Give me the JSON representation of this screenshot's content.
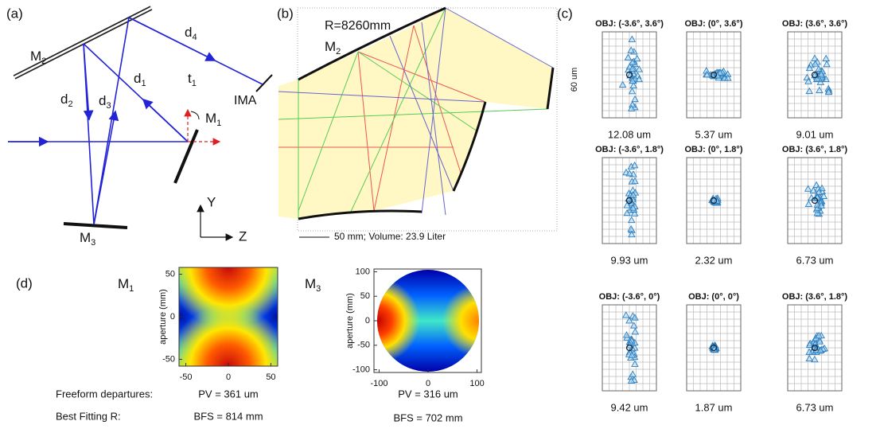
{
  "panel_a": {
    "tag": "(a)",
    "m2": {
      "text": "M",
      "sub": "2"
    },
    "m1": {
      "text": "M",
      "sub": "1"
    },
    "m3": {
      "text": "M",
      "sub": "3"
    },
    "d1": {
      "text": "d",
      "sub": "1"
    },
    "d2": {
      "text": "d",
      "sub": "2"
    },
    "d3": {
      "text": "d",
      "sub": "3"
    },
    "d4": {
      "text": "d",
      "sub": "4"
    },
    "t1": {
      "text": "t",
      "sub": "1"
    },
    "ima": "IMA",
    "y_axis": "Y",
    "z_axis": "Z"
  },
  "panel_b": {
    "tag": "(b)",
    "radius": "R=8260mm",
    "m2": {
      "text": "M",
      "sub": "2"
    },
    "scale": "50 mm; Volume: 23.9 Liter"
  },
  "panel_c": {
    "tag": "(c)",
    "scale_label": "60 um",
    "spots": [
      {
        "field": "OBJ: (-3.6°, 3.6°)",
        "rms": "12.08 um"
      },
      {
        "field": "OBJ: (0°, 3.6°)",
        "rms": "5.37 um"
      },
      {
        "field": "OBJ: (3.6°, 3.6°)",
        "rms": "9.01 um"
      },
      {
        "field": "OBJ: (-3.6°, 1.8°)",
        "rms": "9.93 um"
      },
      {
        "field": "OBJ: (0°, 1.8°)",
        "rms": "2.32 um"
      },
      {
        "field": "OBJ: (3.6°, 1.8°)",
        "rms": "6.73 um"
      },
      {
        "field": "OBJ: (-3.6°, 0°)",
        "rms": "9.42 um"
      },
      {
        "field": "OBJ: (0°, 0°)",
        "rms": "1.87 um"
      },
      {
        "field": "OBJ: (3.6°, 1.8°)",
        "rms": "6.73 um"
      }
    ]
  },
  "panel_d": {
    "tag": "(d)",
    "row_labels": [
      "Freeform departures:",
      "Best Fitting R:"
    ],
    "m1": {
      "name": {
        "text": "M",
        "sub": "1"
      },
      "ylabel": "aperture (mm)",
      "xlim": [
        -58,
        58
      ],
      "ylim": [
        -58,
        58
      ],
      "xticks": [
        -50,
        0,
        50
      ],
      "yticks": [
        -50,
        0,
        50
      ],
      "pv": "PV = 361 um",
      "bfs": "BFS = 814 mm"
    },
    "m3": {
      "name": {
        "text": "M",
        "sub": "3"
      },
      "ylabel": "aperture (mm)",
      "xlim": [
        -104,
        104
      ],
      "ylim": [
        -104,
        104
      ],
      "xticks": [
        -100,
        0,
        100
      ],
      "yticks": [
        -100,
        -50,
        0,
        50,
        100
      ],
      "pv": "PV = 316 um",
      "bfs": "BFS = 702 mm"
    }
  }
}
